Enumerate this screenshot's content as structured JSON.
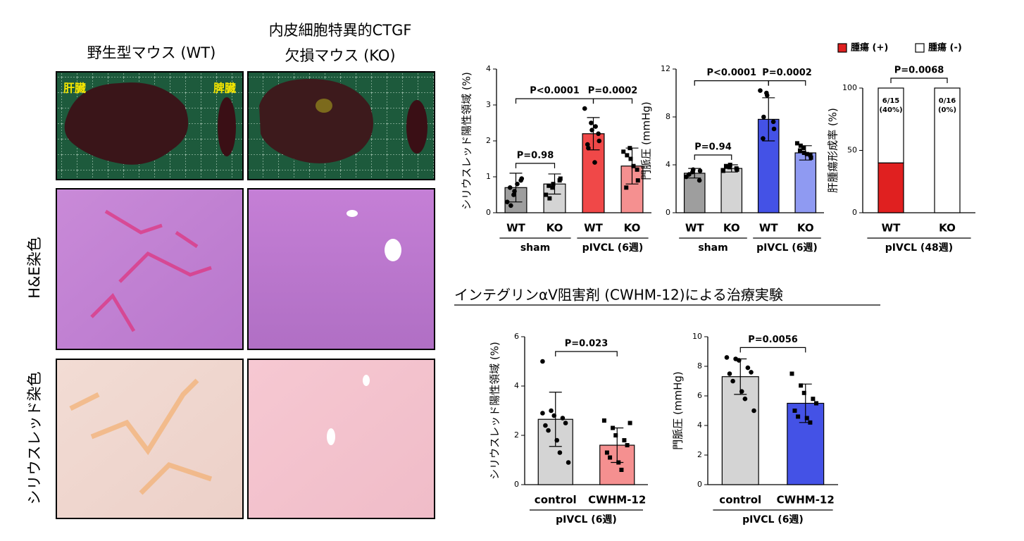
{
  "images": {
    "columns": [
      "野生型マウス (WT)",
      [
        "内皮細胞特異的CTGF",
        "欠損マウス (KO)"
      ]
    ],
    "rows": [
      "H&E染色",
      "シリウスレッド染色"
    ],
    "organ_labels": [
      "肝臓",
      "脾臓"
    ]
  },
  "section_title": "インテグリンαV阻害剤 (CWHM-12)による治療実験",
  "chart_data": [
    {
      "type": "bar",
      "y_label": "シリウスレッド陽性領域 (%)",
      "categories": [
        "WT",
        "KO",
        "WT",
        "KO"
      ],
      "category_groups": [
        "sham",
        "sham",
        "pIVCL (6週)",
        "pIVCL (6週)"
      ],
      "values": [
        0.7,
        0.8,
        2.2,
        1.3
      ],
      "errors": [
        0.4,
        0.28,
        0.45,
        0.5
      ],
      "colors": [
        "#9e9e9e",
        "#d4d4d4",
        "#f04848",
        "#f59090"
      ],
      "points": [
        [
          0.3,
          0.5,
          0.6,
          0.9,
          0.95,
          0.7,
          0.2,
          0.8
        ],
        [
          0.5,
          0.7,
          0.8,
          0.9,
          0.95,
          0.75,
          0.4
        ],
        [
          2.9,
          2.5,
          2.3,
          2.2,
          2.0,
          1.9,
          1.8,
          1.4,
          2.4
        ],
        [
          1.7,
          1.8,
          1.5,
          1.2,
          0.9,
          0.7,
          1.6,
          1.3
        ]
      ],
      "ylim": [
        0,
        4
      ],
      "yticks": [
        0,
        1,
        2,
        3,
        4
      ],
      "comparisons": [
        {
          "label": "P=0.98",
          "pair": [
            0,
            1
          ]
        },
        {
          "label": "P<0.0001",
          "pair": [
            0,
            2
          ]
        },
        {
          "label": "P=0.0002",
          "pair": [
            2,
            3
          ]
        }
      ]
    },
    {
      "type": "bar",
      "y_label": "門脈圧 (mmHg)",
      "categories": [
        "WT",
        "KO",
        "WT",
        "KO"
      ],
      "category_groups": [
        "sham",
        "sham",
        "pIVCL (6週)",
        "pIVCL (6週)"
      ],
      "values": [
        3.3,
        3.7,
        7.8,
        5.0
      ],
      "errors": [
        0.4,
        0.3,
        1.8,
        0.6
      ],
      "colors": [
        "#9e9e9e",
        "#d4d4d4",
        "#4452e6",
        "#8f9af2"
      ],
      "points": [
        [
          3.0,
          3.4,
          3.6,
          2.7,
          3.5,
          3.2
        ],
        [
          3.5,
          3.8,
          4.0,
          3.7,
          3.6,
          3.9
        ],
        [
          10.2,
          10.0,
          9.8,
          7.6,
          7.0,
          6.2,
          8.0
        ],
        [
          5.8,
          5.4,
          5.0,
          4.8,
          4.6,
          5.2,
          5.6,
          4.9
        ]
      ],
      "ylim": [
        0,
        12
      ],
      "yticks": [
        0,
        4,
        8,
        12
      ],
      "comparisons": [
        {
          "label": "P=0.94",
          "pair": [
            0,
            1
          ]
        },
        {
          "label": "P<0.0001",
          "pair": [
            0,
            2
          ]
        },
        {
          "label": "P=0.0002",
          "pair": [
            2,
            3
          ]
        }
      ]
    },
    {
      "type": "stacked_bar",
      "y_label": "肝腫瘍形成率 (%)",
      "categories": [
        "WT",
        "KO"
      ],
      "category_groups": [
        "pIVCL (48週)",
        "pIVCL (48週)"
      ],
      "series": [
        {
          "name": "腫瘍 (+)",
          "color": "#e02020",
          "values": [
            40,
            0
          ],
          "value_labels": [
            "6/15\n(40%)",
            "0/16\n(0%)"
          ]
        },
        {
          "name": "腫瘍 (-)",
          "color": "#ffffff",
          "values": [
            60,
            100
          ]
        }
      ],
      "ylim": [
        0,
        100
      ],
      "yticks": [
        0,
        50,
        100
      ],
      "comparisons": [
        {
          "label": "P=0.0068",
          "pair": [
            0,
            1
          ]
        }
      ]
    },
    {
      "type": "bar",
      "y_label": "シリウスレッド陽性領域 (%)",
      "categories": [
        "control",
        "CWHM-12"
      ],
      "category_groups": [
        "pIVCL (6週)",
        "pIVCL (6週)"
      ],
      "values": [
        2.65,
        1.6
      ],
      "errors": [
        1.1,
        0.7
      ],
      "colors": [
        "#d4d4d4",
        "#f59090"
      ],
      "points": [
        [
          5.0,
          3.0,
          2.8,
          2.7,
          2.5,
          2.4,
          2.2,
          1.8,
          1.3,
          0.9,
          2.9
        ],
        [
          2.6,
          2.3,
          2.0,
          1.8,
          1.6,
          1.3,
          1.1,
          0.9,
          0.6,
          2.5
        ]
      ],
      "ylim": [
        0,
        6
      ],
      "yticks": [
        0,
        2,
        4,
        6
      ],
      "comparisons": [
        {
          "label": "P=0.023",
          "pair": [
            0,
            1
          ]
        }
      ]
    },
    {
      "type": "bar",
      "y_label": "門脈圧 (mmHg)",
      "categories": [
        "control",
        "CWHM-12"
      ],
      "category_groups": [
        "pIVCL (6週)",
        "pIVCL (6週)"
      ],
      "values": [
        7.3,
        5.5
      ],
      "errors": [
        1.2,
        1.3
      ],
      "colors": [
        "#d4d4d4",
        "#4452e6"
      ],
      "points": [
        [
          8.6,
          8.5,
          8.4,
          7.9,
          7.6,
          7.5,
          7.0,
          6.3,
          5.8,
          5.0
        ],
        [
          7.5,
          6.7,
          6.2,
          5.8,
          5.5,
          5.0,
          4.6,
          4.5,
          4.2
        ]
      ],
      "ylim": [
        0,
        10
      ],
      "yticks": [
        0,
        2,
        4,
        6,
        8,
        10
      ],
      "comparisons": [
        {
          "label": "P=0.0056",
          "pair": [
            0,
            1
          ]
        }
      ]
    }
  ]
}
